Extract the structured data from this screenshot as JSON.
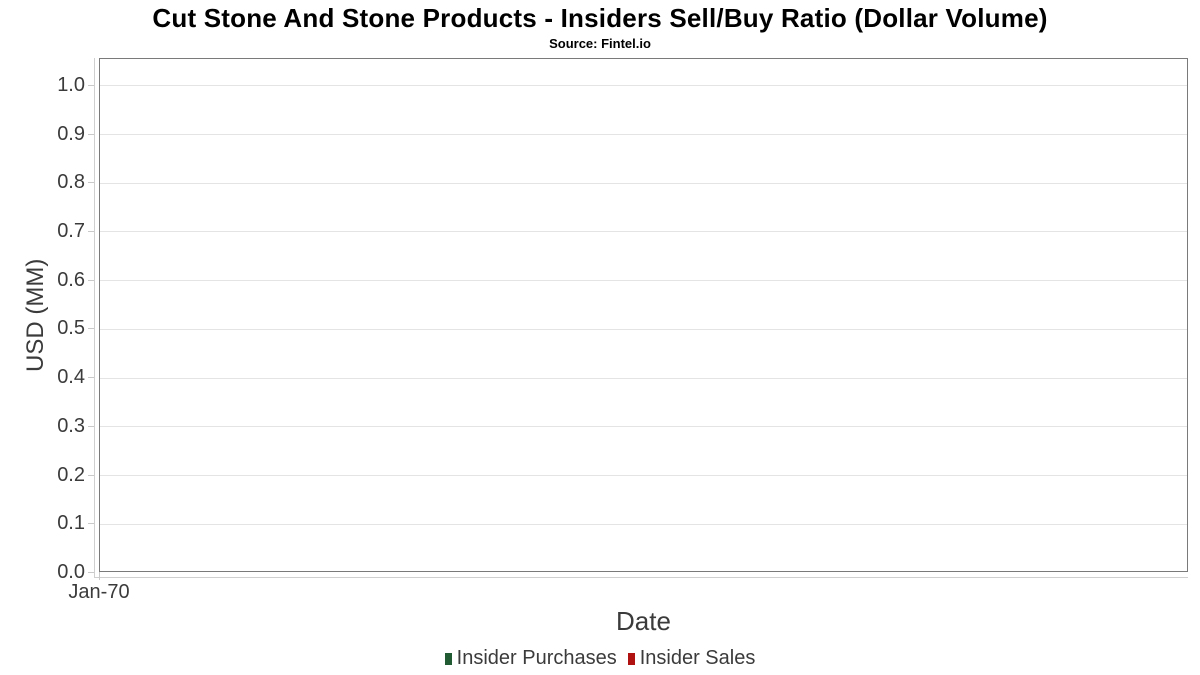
{
  "header": {
    "title": "Cut Stone And Stone Products - Insiders Sell/Buy Ratio (Dollar Volume)",
    "subtitle": "Source: Fintel.io"
  },
  "chart_data": {
    "type": "bar",
    "title": "Cut Stone And Stone Products - Insiders Sell/Buy Ratio (Dollar Volume)",
    "subtitle": "Source: Fintel.io",
    "xlabel": "Date",
    "ylabel": "USD (MM)",
    "x_tick_labels": [
      "Jan-70"
    ],
    "y_ticks": [
      0,
      0.1,
      0.2,
      0.3,
      0.4,
      0.5,
      0.6,
      0.7,
      0.8,
      0.9,
      1.0
    ],
    "y_tick_labels": [
      "0.0",
      "0.1",
      "0.2",
      "0.3",
      "0.4",
      "0.5",
      "0.6",
      "0.7",
      "0.8",
      "0.9",
      "1.0"
    ],
    "ylim": [
      0,
      1.055
    ],
    "grid": true,
    "legend_position": "bottom",
    "categories": [],
    "series": [
      {
        "name": "Insider Purchases",
        "color": "#215b33",
        "values": []
      },
      {
        "name": "Insider Sales",
        "color": "#b01111",
        "values": []
      }
    ]
  },
  "colors": {
    "plot_border": "#7a7a7a",
    "gridline": "#e4e4e4",
    "tick": "#c9c9c9",
    "axis_domain": "#cfcfcf",
    "axis_text": "#3b3b3b",
    "title_text": "#000000"
  }
}
